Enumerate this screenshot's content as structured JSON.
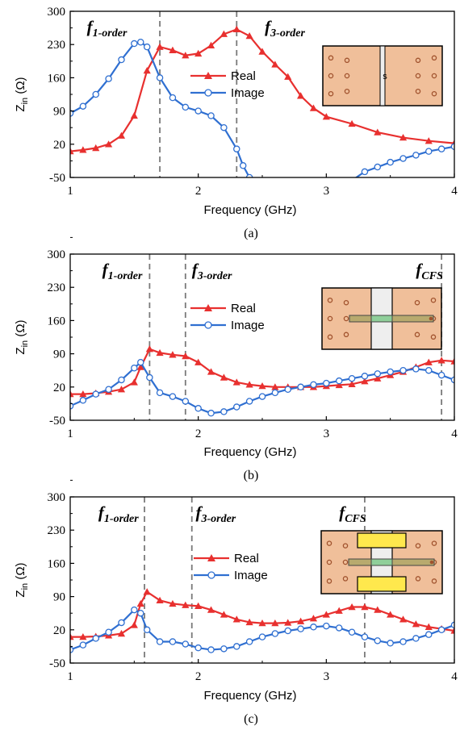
{
  "figure": {
    "colors": {
      "real": "#e8302f",
      "image": "#2f6fd1",
      "dashed": "#7a7a7a",
      "board": "#f0bf9a",
      "gap": "#eeeeee",
      "via": "#a0522d",
      "strip": "#b8aa6e",
      "strip_mid": "#8fcf9a",
      "patch": "#ffe84d"
    }
  },
  "chart_data": [
    {
      "type": "line",
      "panel_label": "(a)",
      "xlabel": "Frequency (GHz)",
      "ylabel_main": "Z",
      "ylabel_sub": "in",
      "ylabel_unit": "(Ω)",
      "xlim": [
        1,
        4
      ],
      "ylim": [
        -50,
        300
      ],
      "xticks": [
        "1",
        "2",
        "3",
        "4"
      ],
      "yticks": [
        "300",
        "230",
        "160",
        "90",
        "20",
        "-50"
      ],
      "legend": [
        "Real",
        "Image"
      ],
      "inset": "slot",
      "inset_label": "s",
      "markers": [
        {
          "main": "f",
          "sub": "1-order",
          "x": 1.7,
          "label_x": 1.13
        },
        {
          "main": "f",
          "sub": "3-order",
          "x": 2.3,
          "label_x": 2.52
        }
      ],
      "series": [
        {
          "name": "Real",
          "marker": "triangle",
          "x": [
            1.0,
            1.1,
            1.2,
            1.3,
            1.4,
            1.5,
            1.6,
            1.7,
            1.8,
            1.9,
            2.0,
            2.1,
            2.2,
            2.3,
            2.4,
            2.5,
            2.6,
            2.7,
            2.8,
            2.9,
            3.0,
            3.2,
            3.4,
            3.6,
            3.8,
            4.0
          ],
          "y": [
            5,
            8,
            12,
            20,
            38,
            80,
            175,
            225,
            218,
            207,
            211,
            228,
            252,
            262,
            248,
            215,
            188,
            162,
            122,
            96,
            78,
            63,
            45,
            34,
            27,
            22
          ]
        },
        {
          "name": "Image",
          "marker": "circle",
          "x": [
            1.0,
            1.1,
            1.2,
            1.3,
            1.4,
            1.5,
            1.55,
            1.6,
            1.7,
            1.8,
            1.9,
            2.0,
            2.1,
            2.2,
            2.3,
            2.35,
            2.4,
            2.45
          ],
          "y": [
            85,
            100,
            125,
            158,
            198,
            232,
            235,
            225,
            160,
            118,
            98,
            90,
            80,
            55,
            10,
            -25,
            -50,
            -60
          ]
        },
        {
          "name": "Image",
          "marker": "circle",
          "x": [
            3.18,
            3.3,
            3.4,
            3.5,
            3.6,
            3.7,
            3.8,
            3.9,
            4.0
          ],
          "y": [
            -60,
            -38,
            -28,
            -18,
            -10,
            -3,
            5,
            10,
            15
          ]
        }
      ]
    },
    {
      "type": "line",
      "panel_label": "(b)",
      "xlabel": "Frequency (GHz)",
      "ylabel_main": "Z",
      "ylabel_sub": "in",
      "ylabel_unit": "(Ω)",
      "xlim": [
        1,
        4
      ],
      "ylim": [
        -50,
        300
      ],
      "xticks": [
        "1",
        "2",
        "3",
        "4"
      ],
      "yticks": [
        "300",
        "230",
        "160",
        "90",
        "20",
        "-50"
      ],
      "legend": [
        "Real",
        "Image"
      ],
      "inset": "strip",
      "markers": [
        {
          "main": "f",
          "sub": "1-order",
          "x": 1.62,
          "label_x": 1.25
        },
        {
          "main": "f",
          "sub": "3-order",
          "x": 1.9,
          "label_x": 1.95
        },
        {
          "main": "f",
          "sub": "CFS",
          "x": 3.9,
          "label_x": 3.7
        }
      ],
      "series": [
        {
          "name": "Real",
          "marker": "triangle",
          "x": [
            1.0,
            1.1,
            1.2,
            1.3,
            1.4,
            1.5,
            1.55,
            1.62,
            1.7,
            1.8,
            1.9,
            2.0,
            2.1,
            2.2,
            2.3,
            2.4,
            2.5,
            2.6,
            2.7,
            2.8,
            2.9,
            3.0,
            3.1,
            3.2,
            3.3,
            3.4,
            3.5,
            3.6,
            3.7,
            3.8,
            3.9,
            4.0
          ],
          "y": [
            5,
            5,
            7,
            10,
            15,
            30,
            62,
            100,
            92,
            88,
            85,
            72,
            52,
            40,
            30,
            25,
            22,
            20,
            20,
            20,
            20,
            22,
            24,
            26,
            32,
            38,
            45,
            52,
            62,
            72,
            76,
            74
          ]
        },
        {
          "name": "Image",
          "marker": "circle",
          "x": [
            1.0,
            1.1,
            1.2,
            1.3,
            1.4,
            1.5,
            1.55,
            1.62,
            1.7,
            1.8,
            1.9,
            2.0,
            2.1,
            2.2,
            2.3,
            2.4,
            2.5,
            2.6,
            2.7,
            2.8,
            2.9,
            3.0,
            3.1,
            3.2,
            3.3,
            3.4,
            3.5,
            3.6,
            3.7,
            3.8,
            3.9,
            4.0
          ],
          "y": [
            -20,
            -8,
            5,
            15,
            35,
            60,
            72,
            40,
            8,
            0,
            -10,
            -25,
            -35,
            -32,
            -22,
            -10,
            0,
            8,
            15,
            20,
            25,
            28,
            33,
            38,
            43,
            48,
            52,
            55,
            58,
            55,
            45,
            35
          ]
        }
      ]
    },
    {
      "type": "line",
      "panel_label": "(c)",
      "xlabel": "Frequency (GHz)",
      "ylabel_main": "Z",
      "ylabel_sub": "in",
      "ylabel_unit": "(Ω)",
      "xlim": [
        1,
        4
      ],
      "ylim": [
        -50,
        300
      ],
      "xticks": [
        "1",
        "2",
        "3",
        "4"
      ],
      "yticks": [
        "300",
        "230",
        "160",
        "90",
        "20",
        "-50"
      ],
      "legend": [
        "Real",
        "Image"
      ],
      "inset": "patch",
      "markers": [
        {
          "main": "f",
          "sub": "1-order",
          "x": 1.58,
          "label_x": 1.22
        },
        {
          "main": "f",
          "sub": "3-order",
          "x": 1.95,
          "label_x": 1.98
        },
        {
          "main": "f",
          "sub": "CFS",
          "x": 3.3,
          "label_x": 3.1
        }
      ],
      "series": [
        {
          "name": "Real",
          "marker": "triangle",
          "x": [
            1.0,
            1.1,
            1.2,
            1.3,
            1.4,
            1.5,
            1.55,
            1.6,
            1.7,
            1.8,
            1.9,
            2.0,
            2.1,
            2.2,
            2.3,
            2.4,
            2.5,
            2.6,
            2.7,
            2.8,
            2.9,
            3.0,
            3.1,
            3.2,
            3.3,
            3.4,
            3.5,
            3.6,
            3.7,
            3.8,
            3.9,
            4.0
          ],
          "y": [
            5,
            5,
            6,
            8,
            12,
            30,
            75,
            100,
            82,
            75,
            72,
            70,
            62,
            52,
            42,
            36,
            34,
            34,
            35,
            38,
            44,
            52,
            60,
            68,
            68,
            62,
            52,
            42,
            32,
            26,
            22,
            18
          ]
        },
        {
          "name": "Image",
          "marker": "circle",
          "x": [
            1.0,
            1.1,
            1.2,
            1.3,
            1.4,
            1.5,
            1.55,
            1.6,
            1.7,
            1.8,
            1.9,
            2.0,
            2.1,
            2.2,
            2.3,
            2.4,
            2.5,
            2.6,
            2.7,
            2.8,
            2.9,
            3.0,
            3.1,
            3.2,
            3.3,
            3.4,
            3.5,
            3.6,
            3.7,
            3.8,
            3.9,
            4.0
          ],
          "y": [
            -22,
            -12,
            2,
            15,
            35,
            62,
            55,
            20,
            -5,
            -5,
            -10,
            -18,
            -22,
            -20,
            -15,
            -5,
            5,
            12,
            18,
            22,
            26,
            28,
            24,
            15,
            5,
            -3,
            -8,
            -5,
            2,
            10,
            20,
            30
          ]
        }
      ]
    }
  ]
}
